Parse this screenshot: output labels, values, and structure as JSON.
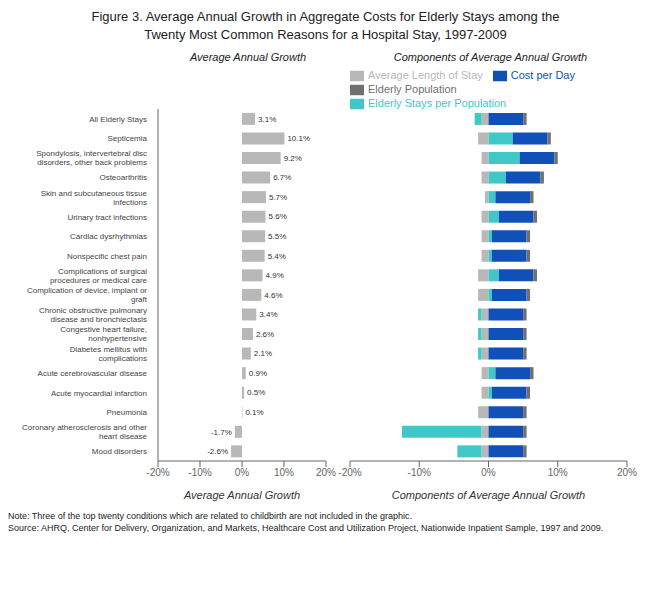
{
  "chart_data": [
    {
      "type": "bar",
      "title": "Figure 3.  Average Annual Growth in Aggregate Costs for Elderly Stays among the\nTwenty Most Common Reasons for a Hospital Stay, 1997-2009",
      "subtitle": "Average Annual Growth",
      "x_label": "Average Annual Growth",
      "orientation": "horizontal",
      "categories": [
        "All Elderly Stays",
        "Septicemia",
        "Spondylosis, intervertebral disc disorders, other back problems",
        "Osteoarthritis",
        "Skin and subcutaneous tissue infections",
        "Urinary tract infections",
        "Cardiac dysrhythmias",
        "Nonspecific chest pain",
        "Complications of surgical procedures or medical care",
        "Complication of device, implant or graft",
        "Chronic obstructive pulmonary disease and bronchiectasis",
        "Congestive heart failure, nonhypertensive",
        "Diabetes mellitus with complications",
        "Acute cerebrovascular disease",
        "Acute myocardial infarction",
        "Pneumonia",
        "Coronary atherosclerosis and other heart disease",
        "Mood disorders"
      ],
      "values": [
        3.1,
        10.1,
        9.2,
        6.7,
        5.7,
        5.6,
        5.5,
        5.4,
        4.9,
        4.6,
        3.4,
        2.6,
        2.1,
        0.9,
        0.5,
        0.1,
        -1.7,
        -2.6
      ],
      "value_labels": [
        "3.1%",
        "10.1%",
        "9.2%",
        "6.7%",
        "5.7%",
        "5.6%",
        "5.5%",
        "5.4%",
        "4.9%",
        "4.6%",
        "3.4%",
        "2.6%",
        "2.1%",
        "0.9%",
        "0.5%",
        "0.1%",
        "-1.7%",
        "-2.6%"
      ],
      "data_labels": true,
      "color": "#b8b8b8",
      "xlim": [
        -20,
        20
      ],
      "xticks": [
        {
          "value": -20,
          "label": "-20%"
        },
        {
          "value": -10,
          "label": "-10%"
        },
        {
          "value": 0,
          "label": "0%"
        },
        {
          "value": 10,
          "label": "10%"
        },
        {
          "value": 20,
          "label": "20%"
        }
      ],
      "grid": false,
      "annotations": [
        "Note:  Three of the top twenty conditions which are related to childbirth are not included in the graphic.",
        "Source:  AHRQ, Center for Delivery, Organization, and Markets, Healthcare Cost and Utilization Project, Nationwide Inpatient Sample, 1997 and 2009."
      ]
    },
    {
      "type": "bar",
      "subtitle": "Components of Average Annual Growth",
      "x_label": "Components of Average Annual Growth",
      "orientation": "horizontal",
      "stacked": true,
      "tick_labels": "x",
      "categories": [
        "All Elderly Stays",
        "Septicemia",
        "Spondylosis, intervertebral disc disorders, other back problems",
        "Osteoarthritis",
        "Skin and subcutaneous tissue infections",
        "Urinary tract infections",
        "Cardiac dysrhythmias",
        "Nonspecific chest pain",
        "Complications of surgical procedures or medical care",
        "Complication of device, implant or graft",
        "Chronic obstructive pulmonary disease and bronchiectasis",
        "Congestive heart failure, nonhypertensive",
        "Diabetes mellitus with complications",
        "Acute cerebrovascular disease",
        "Acute myocardial infarction",
        "Pneumonia",
        "Coronary atherosclerosis and other heart disease",
        "Mood disorders"
      ],
      "series": [
        {
          "name": "Average Length of Stay",
          "color": "#b8b8b8",
          "values": [
            -1.0,
            -1.5,
            -1.0,
            -1.0,
            -0.5,
            -1.0,
            -1.0,
            -1.0,
            -1.5,
            -1.5,
            -1.0,
            -1.0,
            -1.0,
            -1.0,
            -1.0,
            -1.5,
            -1.0,
            -1.0
          ]
        },
        {
          "name": "Elderly Stays per Population",
          "color": "#40c8c8",
          "values": [
            -1.0,
            3.5,
            4.5,
            2.5,
            1.0,
            1.5,
            0.5,
            0.5,
            1.5,
            0.5,
            -0.5,
            -0.5,
            -0.5,
            1.0,
            0.5,
            0.0,
            -11.5,
            -3.5
          ]
        },
        {
          "name": "Cost per Day",
          "color": "#1050b8",
          "values": [
            5.0,
            5.0,
            5.0,
            5.0,
            5.0,
            5.0,
            5.0,
            5.0,
            5.0,
            5.0,
            5.0,
            5.0,
            5.0,
            5.0,
            5.0,
            5.0,
            5.0,
            5.0
          ]
        },
        {
          "name": "Elderly Population",
          "color": "#707070",
          "values": [
            0.5,
            0.5,
            0.5,
            0.5,
            0.5,
            0.5,
            0.5,
            0.5,
            0.5,
            0.5,
            0.5,
            0.5,
            0.5,
            0.5,
            0.5,
            0.5,
            0.5,
            0.5
          ]
        }
      ],
      "xlim": [
        -20,
        20
      ],
      "xticks": [
        {
          "value": -20,
          "label": "-20%"
        },
        {
          "value": -10,
          "label": "-10%"
        },
        {
          "value": 0,
          "label": "0%"
        },
        {
          "value": 10,
          "label": "10%"
        },
        {
          "value": 20,
          "label": "20%"
        }
      ],
      "grid": false,
      "legend": "upper left"
    }
  ]
}
